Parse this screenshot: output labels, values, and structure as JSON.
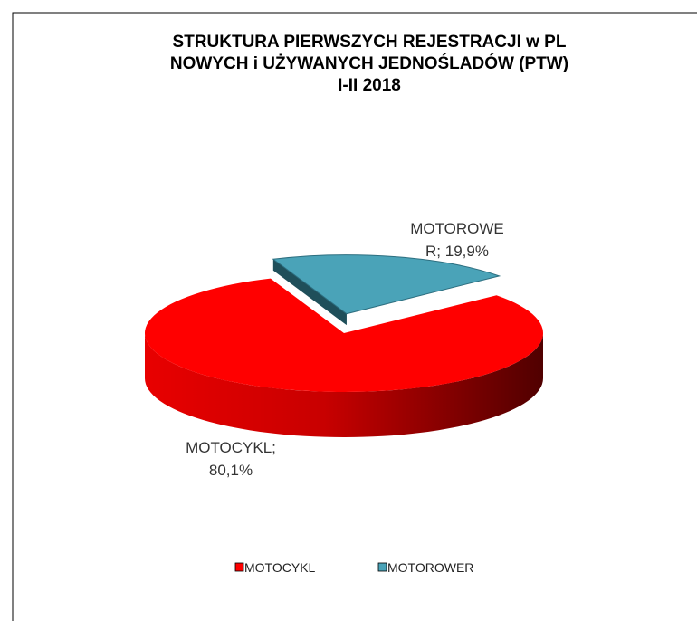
{
  "chart_data": {
    "type": "pie3d",
    "title": "STRUKTURA PIERWSZYCH REJESTRACJI w PL\nNOWYCH i UŻYWANYCH JEDNOŚLADÓW (PTW)\nI-II 2018",
    "categories": [
      "MOTOCYKL",
      "MOTOROWER"
    ],
    "values": [
      80.1,
      19.9
    ],
    "value_labels": [
      "MOTOCYKL;\n80,1%",
      "MOTOROWE\nR; 19,9%"
    ],
    "colors": [
      "#ff0000",
      "#4aa3b8"
    ],
    "legend": "bottom"
  }
}
